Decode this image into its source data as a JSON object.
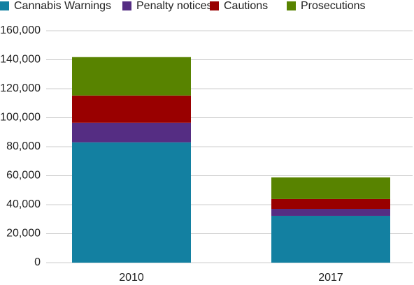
{
  "chart_data": {
    "type": "stacked_bar",
    "categories": [
      "2010",
      "2017"
    ],
    "series": [
      {
        "name": "Cannabis Warnings",
        "color": "#1380a1",
        "values": [
          83000,
          32300
        ]
      },
      {
        "name": "Penalty notices",
        "color": "#552d83",
        "values": [
          13500,
          4800
        ]
      },
      {
        "name": "Cautions",
        "color": "#990000",
        "values": [
          18800,
          6800
        ]
      },
      {
        "name": "Prosecutions",
        "color": "#588300",
        "values": [
          26500,
          14900
        ]
      }
    ],
    "ylim": [
      0,
      160000
    ],
    "yticks": [
      0,
      {
        "value": 20000,
        "label": "20,000"
      },
      {
        "value": 40000,
        "label": "40,000"
      },
      {
        "value": 60000,
        "label": "60,000"
      },
      {
        "value": 80000,
        "label": "80,000"
      },
      {
        "value": 100000,
        "label": "100,000"
      },
      {
        "value": 120000,
        "label": "120,000"
      },
      {
        "value": 140000,
        "label": "140,000"
      },
      {
        "value": 160000,
        "label": "160,000"
      }
    ],
    "grid": true
  }
}
